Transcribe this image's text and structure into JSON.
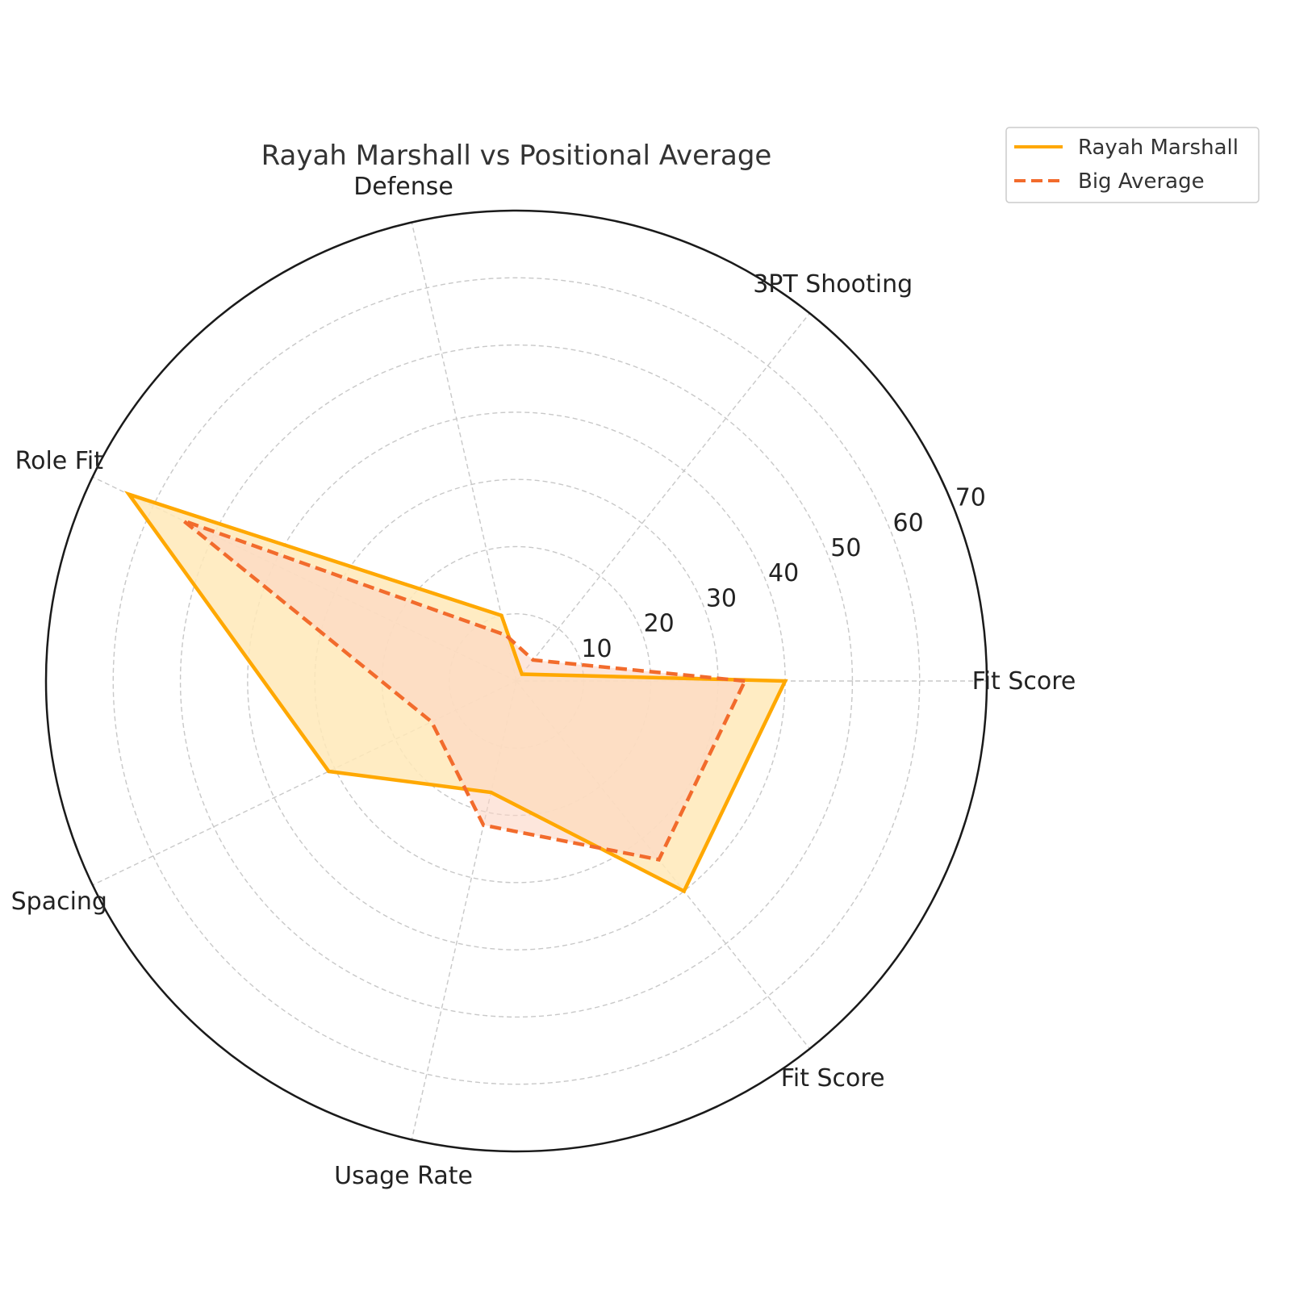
{
  "chart_data": {
    "type": "radar",
    "title": "Rayah Marshall vs Positional Average",
    "categories": [
      "Fit Score",
      "3PT Shooting",
      "Defense",
      "Role Fit",
      "Spacing",
      "Usage Rate",
      "Fit Score"
    ],
    "rlim": [
      0,
      70
    ],
    "r_ticks": [
      10,
      20,
      30,
      40,
      50,
      60,
      70
    ],
    "grid": true,
    "legend_position": "top-right",
    "series": [
      {
        "name": "Rayah Marshall",
        "values": [
          40.0,
          1.3,
          10.0,
          64.0,
          31.0,
          17.0,
          40.0
        ],
        "color": "#FFA800",
        "fill_color": "#FFE9B8",
        "style": "solid"
      },
      {
        "name": "Big Average",
        "values": [
          34.0,
          4.0,
          7.0,
          55.0,
          14.0,
          22.0,
          34.0
        ],
        "color": "#F26B2C",
        "fill_color": "#FBD6C4",
        "style": "dashed"
      }
    ]
  }
}
